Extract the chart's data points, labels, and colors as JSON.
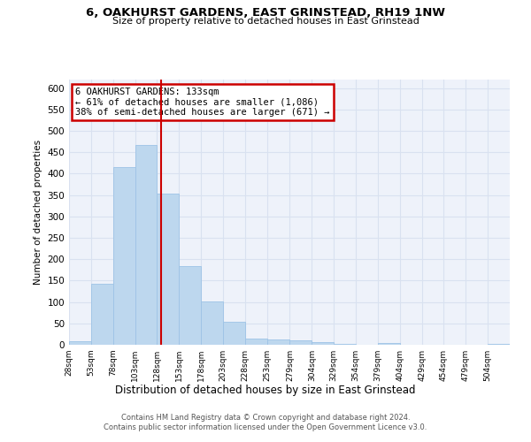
{
  "title": "6, OAKHURST GARDENS, EAST GRINSTEAD, RH19 1NW",
  "subtitle": "Size of property relative to detached houses in East Grinstead",
  "xlabel": "Distribution of detached houses by size in East Grinstead",
  "ylabel": "Number of detached properties",
  "footer_line1": "Contains HM Land Registry data © Crown copyright and database right 2024.",
  "footer_line2": "Contains public sector information licensed under the Open Government Licence v3.0.",
  "bar_color": "#BDD7EE",
  "bar_edge_color": "#9DC3E6",
  "grid_color": "#D9E1F0",
  "annotation_box_color": "#CC0000",
  "vline_color": "#CC0000",
  "annotation_text_line1": "6 OAKHURST GARDENS: 133sqm",
  "annotation_text_line2": "← 61% of detached houses are smaller (1,086)",
  "annotation_text_line3": "38% of semi-detached houses are larger (671) →",
  "property_size": 133,
  "bins": [
    28,
    53,
    78,
    103,
    128,
    153,
    178,
    203,
    228,
    253,
    279,
    304,
    329,
    354,
    379,
    404,
    429,
    454,
    479,
    504,
    529
  ],
  "counts": [
    8,
    143,
    415,
    468,
    353,
    184,
    102,
    53,
    15,
    12,
    11,
    6,
    2,
    1,
    4,
    1,
    0,
    0,
    0,
    3
  ],
  "ylim": [
    0,
    620
  ],
  "yticks": [
    0,
    50,
    100,
    150,
    200,
    250,
    300,
    350,
    400,
    450,
    500,
    550,
    600
  ],
  "bg_color": "#EEF2FA"
}
